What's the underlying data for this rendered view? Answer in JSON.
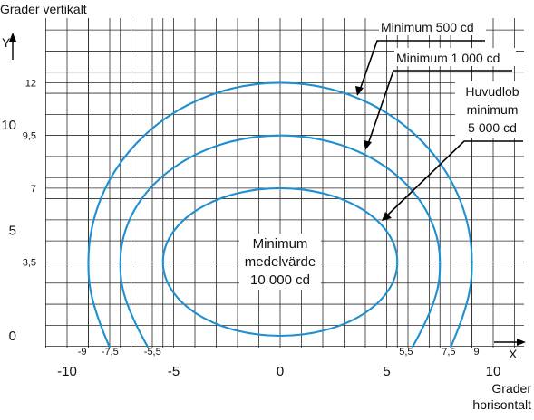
{
  "axes": {
    "y_title": "Grader vertikalt",
    "y_symbol": "Y",
    "x_symbol": "X",
    "x_title_line1": "Grader",
    "x_title_line2": "horisontalt",
    "y_major_ticks": [
      {
        "value": 0,
        "label": "0"
      },
      {
        "value": 5,
        "label": "5"
      },
      {
        "value": 10,
        "label": "10"
      }
    ],
    "y_minor_ticks": [
      {
        "value": 3.5,
        "label": "3,5"
      },
      {
        "value": 7,
        "label": "7"
      },
      {
        "value": 9.5,
        "label": "9,5"
      },
      {
        "value": 12,
        "label": "12"
      }
    ],
    "x_major_ticks": [
      {
        "value": -10,
        "label": "-10"
      },
      {
        "value": -5,
        "label": "-5"
      },
      {
        "value": 0,
        "label": "0"
      },
      {
        "value": 5,
        "label": "5"
      },
      {
        "value": 10,
        "label": "10"
      }
    ],
    "x_minor_ticks": [
      {
        "value": -9,
        "label": "-9"
      },
      {
        "value": -7.5,
        "label": "-7,5"
      },
      {
        "value": -5.5,
        "label": "-5,5"
      },
      {
        "value": 5.5,
        "label": "5,5"
      },
      {
        "value": 7.5,
        "label": "7,5"
      },
      {
        "value": 9,
        "label": "9"
      }
    ]
  },
  "curves": [
    {
      "id": "outer",
      "half_width": 9,
      "top": 12,
      "bottom_half_width": 8
    },
    {
      "id": "middle",
      "half_width": 7.5,
      "top": 9.5,
      "bottom_half_width": 6.2
    },
    {
      "id": "inner",
      "half_width": 5.5,
      "top": 7,
      "bottom_half_width": 0
    }
  ],
  "labels": {
    "min500": "Minimum 500 cd",
    "min1000": "Minimum 1 000 cd",
    "huvud_line1": "Huvudlob",
    "huvud_line2": "minimum",
    "huvud_line3": "5 000 cd",
    "center_line1": "Minimum",
    "center_line2": "medelvärde",
    "center_line3": "10 000 cd"
  },
  "colors": {
    "curve": "#1e8fd0",
    "grid": "#2b2b2b"
  }
}
